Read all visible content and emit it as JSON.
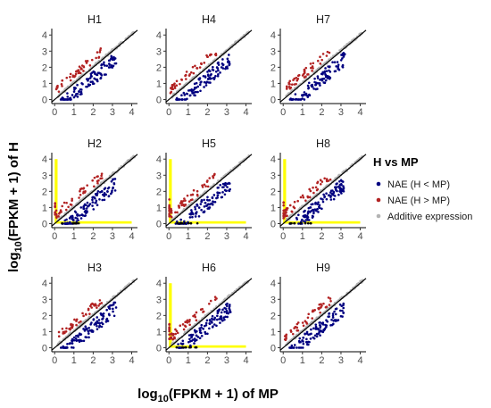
{
  "chart_data": {
    "type": "scatter",
    "facets": [
      "H1",
      "H4",
      "H7",
      "H2",
      "H5",
      "H8",
      "H3",
      "H6",
      "H9"
    ],
    "highlighted_facets": [
      "H2",
      "H5",
      "H8",
      "H6"
    ],
    "xlabel": {
      "prefix": "log",
      "sub": "10",
      "suffix": "(FPKM + 1) of MP"
    },
    "ylabel": {
      "prefix": "log",
      "sub": "10",
      "suffix": "(FPKM + 1) of H"
    },
    "x_ticks": [
      "0",
      "1",
      "2",
      "3",
      "4"
    ],
    "y_ticks": [
      "0",
      "1",
      "2",
      "3",
      "4"
    ],
    "xlim": [
      -0.15,
      4.3
    ],
    "ylim": [
      -0.25,
      4.4
    ],
    "reference_line": {
      "slope": 1,
      "intercept": 0
    },
    "highlight_bands": {
      "x_max": 0.15,
      "y_max": 4.0,
      "band_width": 0.15,
      "color": "#ffff00"
    },
    "legend": {
      "title": "H vs MP",
      "position": "right",
      "items": [
        {
          "label": "NAE (H < MP)",
          "color": "#000080"
        },
        {
          "label": "NAE (H > MP)",
          "color": "#b22222"
        },
        {
          "label": "Additive expression",
          "color": "#b3b3b3"
        }
      ]
    },
    "series": [
      {
        "name": "NAE (H < MP)",
        "relation": "below diagonal",
        "x_range": [
          0.3,
          3.2
        ]
      },
      {
        "name": "NAE (H > MP)",
        "relation": "above diagonal",
        "x_range": [
          0.1,
          2.6
        ]
      },
      {
        "name": "Additive expression",
        "relation": "along diagonal",
        "x_range": [
          0.2,
          4.2
        ]
      }
    ],
    "grid": false
  }
}
